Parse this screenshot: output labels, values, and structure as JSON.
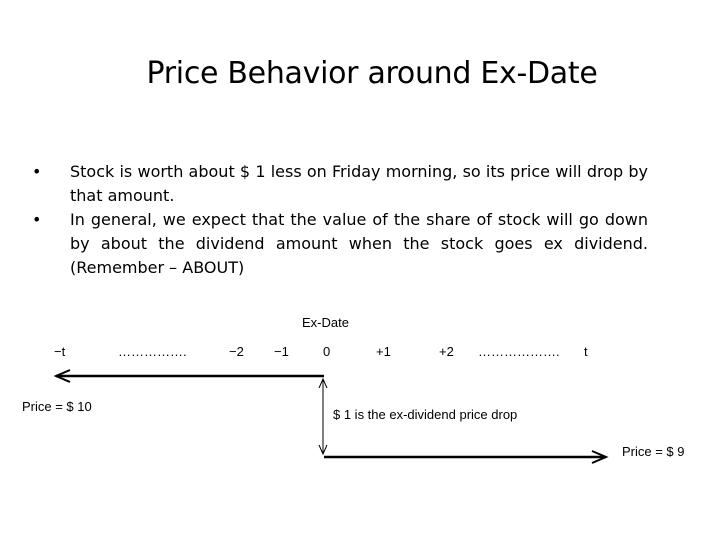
{
  "slide": {
    "title": "Price Behavior around Ex-Date",
    "bullets": [
      {
        "marker": "•",
        "text": "Stock is worth about $ 1 less on Friday morning, so its price will drop by that amount."
      },
      {
        "marker": "•",
        "text": "In general, we expect that the value of the share of stock will go down by about the dividend amount when the  stock goes ex dividend. (Remember – ABOUT)"
      }
    ]
  },
  "diagram": {
    "header": "Ex-Date",
    "timeline": [
      "−t",
      "…………….",
      "−2",
      "−1",
      "0",
      "+1",
      "+2",
      "……………….",
      "t"
    ],
    "price_before": "Price = $ 10",
    "price_after": "Price = $ 9",
    "drop_note": "$ 1 is the ex-dividend price drop"
  }
}
